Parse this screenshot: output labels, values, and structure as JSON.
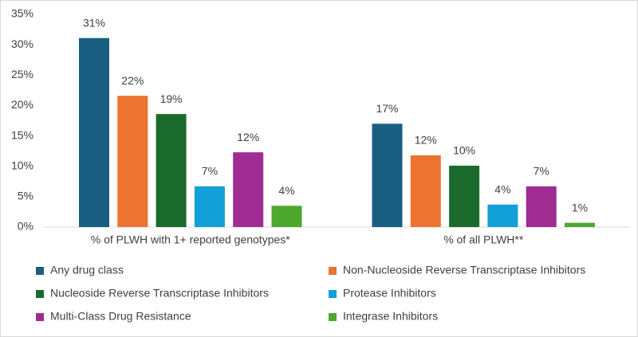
{
  "chart_data": {
    "type": "bar",
    "categories": [
      "% of PLWH with 1+ reported genotypes*",
      "% of all PLWH**"
    ],
    "series": [
      {
        "name": "Any drug class",
        "color": "#1a5f82",
        "values": [
          31.1,
          17.0
        ],
        "value_labels": [
          "31%",
          "17%"
        ]
      },
      {
        "name": "Non-Nucleoside Reverse Transcriptase Inhibitors",
        "color": "#ed7331",
        "values": [
          21.6,
          11.8
        ],
        "value_labels": [
          "22%",
          "12%"
        ]
      },
      {
        "name": "Nucleoside Reverse Transcriptase Inhibitors",
        "color": "#1a6b2b",
        "values": [
          18.6,
          10.1
        ],
        "value_labels": [
          "19%",
          "10%"
        ]
      },
      {
        "name": "Protease Inhibitors",
        "color": "#139fd8",
        "values": [
          6.7,
          3.7
        ],
        "value_labels": [
          "7%",
          "4%"
        ]
      },
      {
        "name": "Multi-Class Drug Resistance",
        "color": "#a02b93",
        "values": [
          12.3,
          6.7
        ],
        "value_labels": [
          "12%",
          "7%"
        ]
      },
      {
        "name": "Integrase Inhibitors",
        "color": "#4ea72e",
        "values": [
          3.5,
          0.7
        ],
        "value_labels": [
          "4%",
          "1%"
        ]
      }
    ],
    "ylim": [
      0,
      35
    ],
    "yticks": [
      {
        "value": 0,
        "label": "0%"
      },
      {
        "value": 5,
        "label": "5%"
      },
      {
        "value": 10,
        "label": "10%"
      },
      {
        "value": 15,
        "label": "15%"
      },
      {
        "value": 20,
        "label": "20%"
      },
      {
        "value": 25,
        "label": "25%"
      },
      {
        "value": 30,
        "label": "30%"
      },
      {
        "value": 35,
        "label": "35%"
      }
    ],
    "grid": false,
    "legend": "bottom"
  }
}
